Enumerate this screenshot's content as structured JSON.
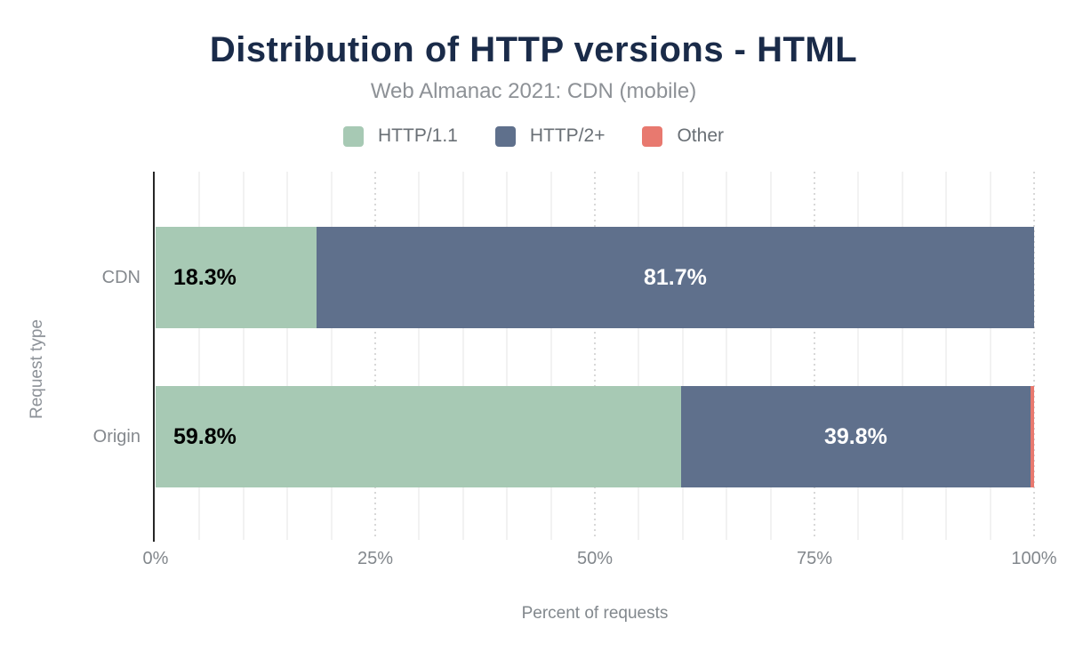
{
  "chart_data": {
    "type": "bar",
    "orientation": "horizontal",
    "stacked": true,
    "title": "Distribution of HTTP versions - HTML",
    "subtitle": "Web Almanac 2021: CDN (mobile)",
    "categories": [
      "CDN",
      "Origin"
    ],
    "series": [
      {
        "name": "HTTP/1.1",
        "color": "#a7c9b4",
        "values": [
          18.3,
          59.8
        ]
      },
      {
        "name": "HTTP/2+",
        "color": "#5f708c",
        "values": [
          81.7,
          39.8
        ]
      },
      {
        "name": "Other",
        "color": "#e8796f",
        "values": [
          0,
          0.4
        ]
      }
    ],
    "bar_value_labels": [
      [
        "18.3%",
        "81.7%",
        ""
      ],
      [
        "59.8%",
        "39.8%",
        ""
      ]
    ],
    "xlabel": "Percent of requests",
    "ylabel": "Request type",
    "xlim": [
      0,
      100
    ],
    "x_ticks": [
      {
        "value": 0,
        "label": "0%"
      },
      {
        "value": 25,
        "label": "25%"
      },
      {
        "value": 50,
        "label": "50%"
      },
      {
        "value": 75,
        "label": "75%"
      },
      {
        "value": 100,
        "label": "100%"
      }
    ],
    "minor_grid_step": 5,
    "major_grid_values": [
      25,
      50,
      75,
      100
    ],
    "grid": true,
    "legend_position": "top"
  },
  "style": {
    "title_color": "#1a2b49",
    "subtitle_color": "#8d9196",
    "axis_line_color": "#262626",
    "minor_grid_color": "#f2f2f2",
    "major_grid_color": "#d8d8d8",
    "tick_label_color": "#82878c",
    "bar_label_on_light": "#000000",
    "bar_label_on_dark": "#ffffff"
  }
}
